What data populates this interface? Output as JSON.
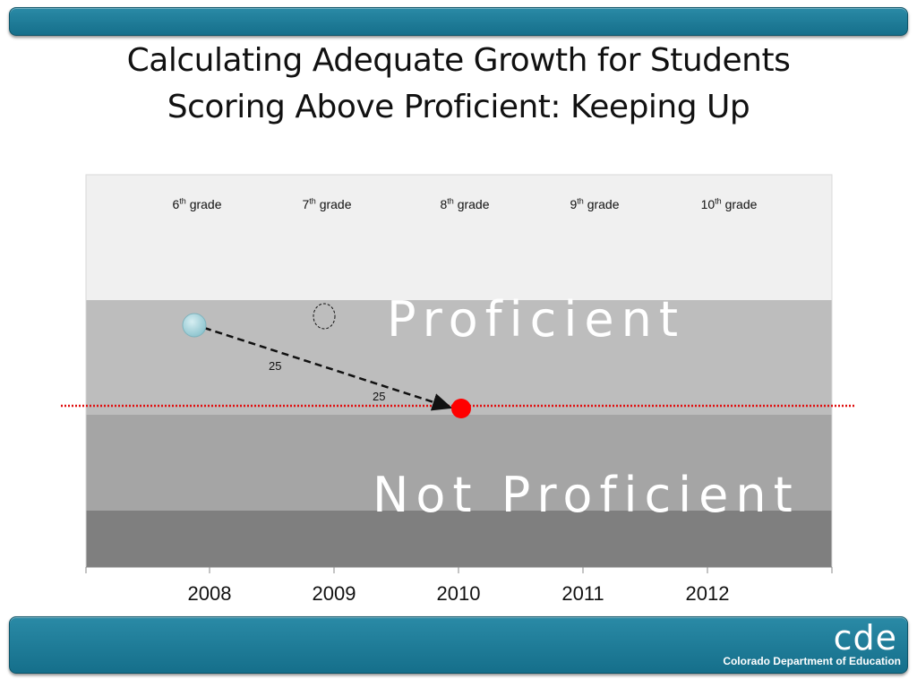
{
  "title": {
    "line1": "Calculating Adequate Growth for Students",
    "line2": "Scoring Above Proficient: Keeping Up"
  },
  "chart_data": {
    "type": "diagram",
    "grades": [
      {
        "num": "6",
        "suffix": "th",
        "word": "grade"
      },
      {
        "num": "7",
        "suffix": "th",
        "word": "grade"
      },
      {
        "num": "8",
        "suffix": "th",
        "word": "grade"
      },
      {
        "num": "9",
        "suffix": "th",
        "word": "grade"
      },
      {
        "num": "10",
        "suffix": "th",
        "word": "grade"
      }
    ],
    "years": [
      "2008",
      "2009",
      "2010",
      "2011",
      "2012"
    ],
    "bands": {
      "upper": "Proficient",
      "lower": "Not Proficient"
    },
    "arrow_labels": [
      "25",
      "25"
    ],
    "colors": {
      "start_point": "#a8d4dc",
      "target_point": "#ff0000",
      "cut_line": "#e01010",
      "band_top": "#f0f0f0",
      "band_proficient": "#bdbdbd",
      "band_partial": "#a5a5a5",
      "band_bottom": "#7f7f7f"
    }
  },
  "footer": {
    "logo": "cde",
    "org": "Colorado Department of Education"
  }
}
